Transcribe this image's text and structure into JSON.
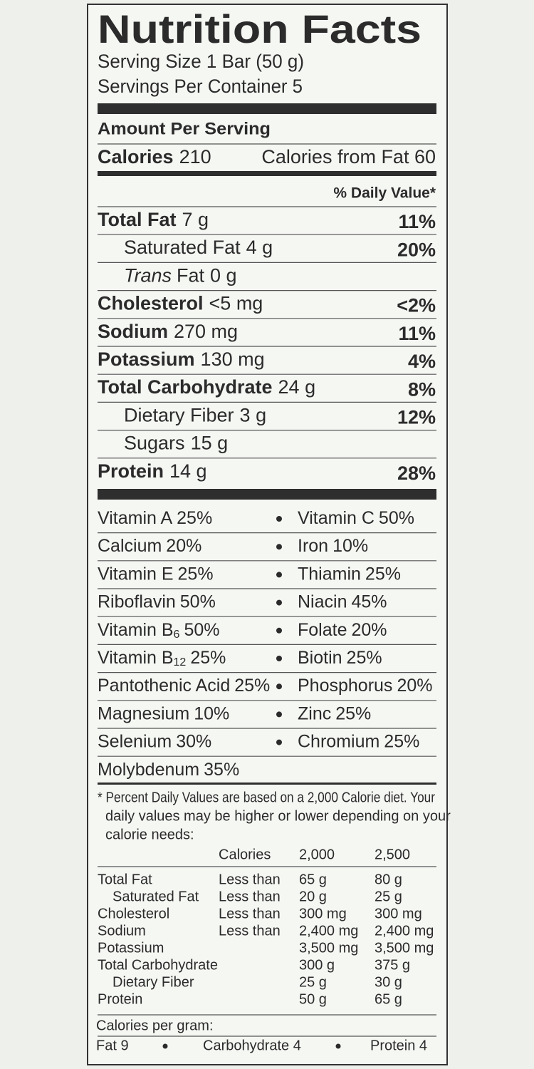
{
  "title": "Nutrition Facts",
  "serving_size": "Serving Size 1 Bar (50 g)",
  "servings_per_container": "Servings Per Container 5",
  "amount_per_serving": "Amount Per Serving",
  "calories": {
    "label": "Calories",
    "value": "210"
  },
  "calories_from_fat": "Calories from Fat 60",
  "daily_value_header": "% Daily Value*",
  "nutrients": [
    {
      "name": "Total Fat",
      "amount": "7 g",
      "dv": "11%",
      "bold": true
    },
    {
      "name": "Saturated Fat",
      "amount": "4 g",
      "dv": "20%",
      "indent": true
    },
    {
      "italic": "Trans",
      "name": "Fat",
      "amount": "0 g",
      "indent": true
    },
    {
      "name": "Cholesterol",
      "amount": "<5 mg",
      "dv": "<2%",
      "bold": true
    },
    {
      "name": "Sodium",
      "amount": "270 mg",
      "dv": "11%",
      "bold": true
    },
    {
      "name": "Potassium",
      "amount": "130 mg",
      "dv": "4%",
      "bold": true
    },
    {
      "name": "Total Carbohydrate",
      "amount": "24 g",
      "dv": "8%",
      "bold": true
    },
    {
      "name": "Dietary Fiber",
      "amount": "3 g",
      "dv": "12%",
      "indent": true
    },
    {
      "name": "Sugars",
      "amount": "15 g",
      "indent": true
    },
    {
      "name": "Protein",
      "amount": "14 g",
      "dv": "28%",
      "bold": true
    }
  ],
  "vitamins": [
    [
      {
        "name": "Vitamin A",
        "dv": "25%"
      },
      {
        "name": "Vitamin C",
        "dv": "50%"
      }
    ],
    [
      {
        "name": "Calcium",
        "dv": "20%"
      },
      {
        "name": "Iron",
        "dv": "10%"
      }
    ],
    [
      {
        "name": "Vitamin E",
        "dv": "25%"
      },
      {
        "name": "Thiamin",
        "dv": "25%"
      }
    ],
    [
      {
        "name": "Riboflavin",
        "dv": "50%"
      },
      {
        "name": "Niacin",
        "dv": "45%"
      }
    ],
    [
      {
        "name": "Vitamin B",
        "sub": "6",
        "dv": "50%"
      },
      {
        "name": "Folate",
        "dv": "20%"
      }
    ],
    [
      {
        "name": "Vitamin B",
        "sub": "12",
        "dv": "25%"
      },
      {
        "name": "Biotin",
        "dv": "25%"
      }
    ],
    [
      {
        "name": "Pantothenic Acid",
        "dv": "25%"
      },
      {
        "name": "Phosphorus",
        "dv": "20%"
      }
    ],
    [
      {
        "name": "Magnesium",
        "dv": "10%"
      },
      {
        "name": "Zinc",
        "dv": "25%"
      }
    ],
    [
      {
        "name": "Selenium",
        "dv": "30%"
      },
      {
        "name": "Chromium",
        "dv": "25%"
      }
    ],
    [
      {
        "name": "Molybdenum",
        "dv": "35%"
      }
    ]
  ],
  "footnote": [
    "* Percent Daily Values are based on a 2,000 Calorie diet. Your",
    "daily values may be higher or lower depending on your",
    "calorie needs:"
  ],
  "reference_table": {
    "header": {
      "calories": "Calories",
      "v2000": "2,000",
      "v2500": "2,500"
    },
    "rows": [
      {
        "nutrient": "Total Fat",
        "limit": "Less than",
        "v2000": "65 g",
        "v2500": "80 g"
      },
      {
        "nutrient": "Saturated Fat",
        "limit": "Less than",
        "v2000": "20 g",
        "v2500": "25 g",
        "indent": true
      },
      {
        "nutrient": "Cholesterol",
        "limit": "Less than",
        "v2000": "300 mg",
        "v2500": "300 mg"
      },
      {
        "nutrient": "Sodium",
        "limit": "Less than",
        "v2000": "2,400 mg",
        "v2500": "2,400 mg"
      },
      {
        "nutrient": "Potassium",
        "v2000": "3,500 mg",
        "v2500": "3,500 mg"
      },
      {
        "nutrient": "Total Carbohydrate",
        "v2000": "300 g",
        "v2500": "375 g"
      },
      {
        "nutrient": "Dietary Fiber",
        "v2000": "25 g",
        "v2500": "30 g",
        "indent": true
      },
      {
        "nutrient": "Protein",
        "v2000": "50 g",
        "v2500": "65 g"
      }
    ]
  },
  "calories_per_gram": {
    "label": "Calories per gram:",
    "items": [
      "Fat 9",
      "Carbohydrate 4",
      "Protein 4"
    ]
  }
}
